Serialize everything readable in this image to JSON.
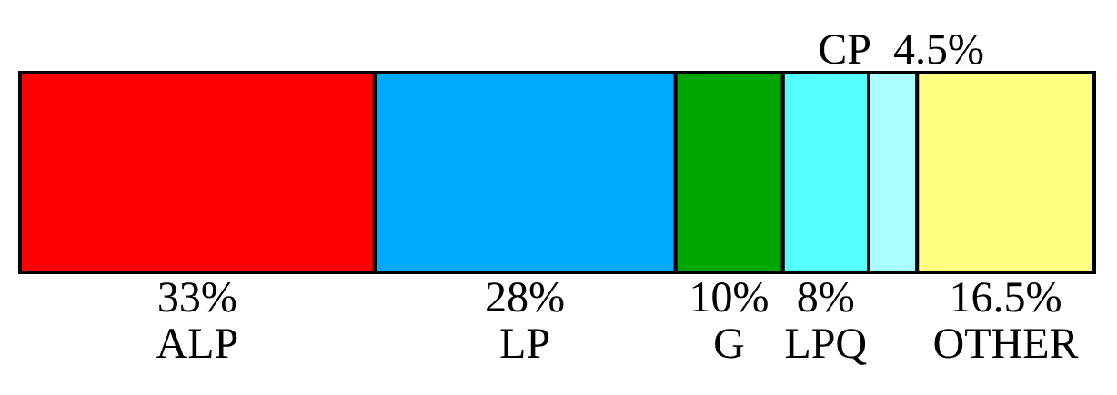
{
  "chart_data": {
    "type": "bar",
    "orientation": "horizontal",
    "stacked": true,
    "categories": [
      null
    ],
    "series": [
      {
        "name": "ALP",
        "color": "#ff0000",
        "values": [
          33
        ],
        "value_labels": [
          "33%"
        ]
      },
      {
        "name": "LP",
        "color": "#00aaff",
        "values": [
          28
        ],
        "value_labels": [
          "28%"
        ]
      },
      {
        "name": "G",
        "color": "#00a600",
        "values": [
          10
        ],
        "value_labels": [
          "10%"
        ]
      },
      {
        "name": "LPQ",
        "color": "#55ffff",
        "values": [
          8
        ],
        "value_labels": [
          "8%"
        ]
      },
      {
        "name": "CP",
        "color": "#aaffff",
        "values": [
          4.5
        ],
        "value_labels": [
          "4.5%"
        ]
      },
      {
        "name": "OTHER",
        "color": "#ffff80",
        "values": [
          16.5
        ],
        "value_labels": [
          "16.5%"
        ]
      }
    ]
  }
}
